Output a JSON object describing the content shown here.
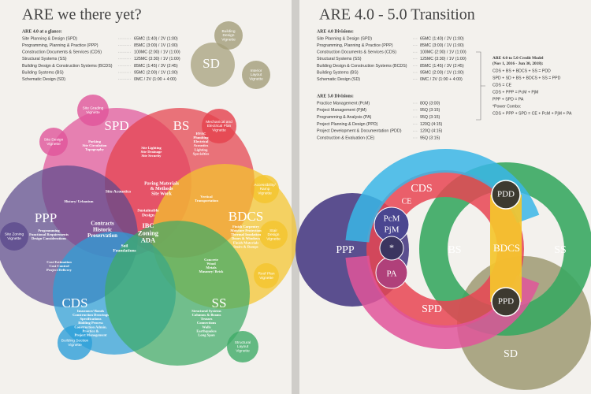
{
  "left": {
    "title": "ARE we there yet?",
    "intro": "ARE 4.0 at a glance:",
    "divisions": [
      {
        "name": "Site Planning & Design (SPD)",
        "value": "65MC (1:40) / 2V (1:00)"
      },
      {
        "name": "Programming, Planning & Practice (PPP)",
        "value": "85MC (3:00) / 1V (1:00)"
      },
      {
        "name": "Construction Documents & Services (CDS)",
        "value": "100MC (2:00) / 1V (1:00)"
      },
      {
        "name": "Structural Systems (SS)",
        "value": "125MC (3:30) / 1V (1:00)"
      },
      {
        "name": "Building Design & Construction Systems (BCDS)",
        "value": "85MC (1:45) / 3V (2:45)"
      },
      {
        "name": "Building Systems (BS)",
        "value": "95MC (2:00) / 1V (1:00)"
      },
      {
        "name": "Schematic Design (SD)",
        "value": "0MC / 2V (1:00 + 4:00)"
      }
    ],
    "circles": [
      "SPD",
      "BS",
      "PPP",
      "BDCS",
      "CDS",
      "SS",
      "SD"
    ],
    "topics": [
      [
        "Parking",
        "Site Circulation",
        "Topography"
      ],
      [
        "Site Lighting",
        "Site Drainage",
        "Site Security"
      ],
      [
        "HVAC",
        "Plumbing",
        "Electrical",
        "Acoustics",
        "Lighting",
        "Specialties"
      ],
      [
        "Paving Materials",
        "& Methods",
        "Site Work"
      ],
      [
        "Site Acoustics"
      ],
      [
        "History/ Urbanism"
      ],
      [
        "Vertical",
        "Transportation"
      ],
      [
        "Sustainable",
        "Design"
      ],
      [
        "Contracts",
        "Historic",
        "Preservation"
      ],
      [
        "IBC",
        "Zoning",
        "ADA"
      ],
      [
        "Soil",
        "Foundations"
      ],
      [
        "Programming",
        "Functional Requirements",
        "Design Considerations"
      ],
      [
        "Finish Carpentry",
        "Moisture Protection",
        "Thermal Insulation",
        "Doors & Windows",
        "Finish Materials",
        "Stairs & Ramps"
      ],
      [
        "Cost Estimation",
        "Cost Control",
        "Project Delivery"
      ],
      [
        "Concrete",
        "Wood",
        "Metals",
        "Masonry/ Brick"
      ],
      [
        "Insurance/ Bonds",
        "Construction Drawings",
        "Specifications",
        "Bidding Process",
        "Construction Admin.",
        "Practice &",
        "Project Management"
      ],
      [
        "Structural Systems",
        "Columns & Beams",
        "Trusses",
        "Connections",
        "Walls",
        "Earthquakes",
        "Long Span"
      ]
    ],
    "vignettes": [
      [
        "Site Grading",
        "Vignette"
      ],
      [
        "Site Design",
        "Vignette"
      ],
      [
        "Mechanical and",
        "Electrical Plan",
        "Vignette"
      ],
      [
        "Accessibility/",
        "Ramp",
        "Vignette"
      ],
      [
        "Stair",
        "Design",
        "Vignette"
      ],
      [
        "Roof Plan",
        "Vignette"
      ],
      [
        "Structural",
        "Layout",
        "Vignette"
      ],
      [
        "Building Section",
        "Vignette"
      ],
      [
        "Site Zoning",
        "Vignette"
      ],
      [
        "Building",
        "Design",
        "Vignette"
      ],
      [
        "Interior",
        "Layout",
        "Vignette"
      ]
    ]
  },
  "right": {
    "title": "ARE 4.0 - 5.0 Transition",
    "heading_4": "ARE 4.0 Divisions:",
    "divisions_4": [
      {
        "name": "Site Planning & Design (SPD)",
        "value": "65MC (1:40) / 2V (1:00)"
      },
      {
        "name": "Programming, Planning & Practice (PPP)",
        "value": "85MC (3:00) / 1V (1:00)"
      },
      {
        "name": "Construction Documents & Services (CDS)",
        "value": "100MC (2:00) / 1V (1:00)"
      },
      {
        "name": "Structural Systems (SS)",
        "value": "125MC (3:30) / 1V (1:00)"
      },
      {
        "name": "Building Design & Construction Systems (BCDS)",
        "value": "85MC (1:45) / 3V (2:45)"
      },
      {
        "name": "Building Systems (BS)",
        "value": "95MC (2:00) / 1V (1:00)"
      },
      {
        "name": "Schematic Design (SD)",
        "value": "0MC / 2V (1:00 + 4:00)"
      }
    ],
    "heading_5": "ARE 5.0 Divisions:",
    "divisions_5": [
      {
        "name": "Practice Management (PcM)",
        "value": "80Q (3:00)"
      },
      {
        "name": "Project Management (PjM)",
        "value": "95Q (3:15)"
      },
      {
        "name": "Programming & Analysis (PA)",
        "value": "95Q (3:15)"
      },
      {
        "name": "Project Planning & Design (PPD)",
        "value": "120Q (4:15)"
      },
      {
        "name": "Project Development & Documentation (PDD)",
        "value": "120Q (4:15)"
      },
      {
        "name": "Construction & Evaluation (CE)",
        "value": "95Q (3:15)"
      }
    ],
    "credit_heading": [
      "ARE 4.0 to 5.0 Credit Model",
      "(Nov 1, 2016 - Jun 30, 2018):"
    ],
    "credit_rules": [
      "CDS + BS + BDCS + SS = PDD",
      "SPD + SD + BS + BDCS + SS = PPD",
      "CDS = CE",
      "CDS + PPP = PcM + PjM",
      "PPP + SPD = PA",
      "*Power Combo:",
      "CDS + PPP + SPD = CE + PcM + PjM + PA"
    ],
    "labels": [
      "PPP",
      "CDS",
      "CE",
      "BS",
      "BDCS",
      "SS",
      "SPD",
      "SD",
      "PcM",
      "PjM",
      "*",
      "PA",
      "PDD",
      "PPD"
    ]
  }
}
